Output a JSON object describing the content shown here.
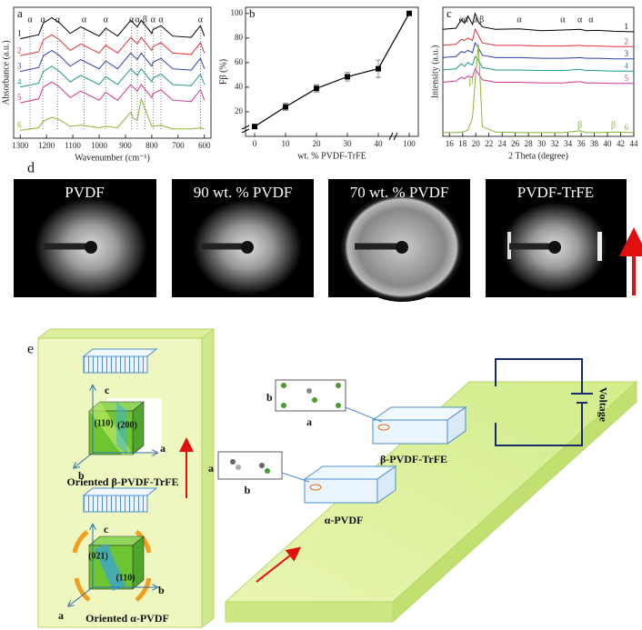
{
  "chart_data": [
    {
      "type": "line",
      "label": "a",
      "xlabel": "Wavenumber (cm⁻¹)",
      "ylabel": "Absorbance (a.u.)",
      "x": [
        1300,
        1230,
        1212,
        1180,
        1150,
        1110,
        1070,
        1000,
        975,
        930,
        880,
        870,
        855,
        840,
        800,
        795,
        765,
        720,
        650,
        615,
        600
      ],
      "xlim": [
        1325,
        575
      ],
      "ylim": [
        0,
        10
      ],
      "xticks": [
        1300,
        1200,
        1100,
        1000,
        900,
        800,
        700,
        600
      ],
      "guide_lines": true,
      "series": [
        {
          "name": "1",
          "color": "#000000",
          "values": [
            7.6,
            7.9,
            8.8,
            9.2,
            8.8,
            8.0,
            8.5,
            7.8,
            8.4,
            7.8,
            9.0,
            8.8,
            8.5,
            9.0,
            8.0,
            8.3,
            8.6,
            7.8,
            7.7,
            8.6,
            7.8
          ]
        },
        {
          "name": "2",
          "color": "#e0303a",
          "values": [
            6.3,
            6.6,
            7.5,
            7.9,
            7.5,
            6.7,
            7.2,
            6.5,
            7.1,
            6.5,
            7.7,
            7.5,
            7.2,
            7.7,
            6.7,
            7.0,
            7.3,
            6.5,
            6.4,
            7.3,
            6.5
          ]
        },
        {
          "name": "3",
          "color": "#2b3fae",
          "values": [
            5.1,
            5.4,
            6.3,
            6.7,
            6.3,
            5.5,
            6.0,
            5.3,
            5.9,
            5.3,
            6.5,
            6.3,
            6.0,
            6.5,
            5.5,
            5.8,
            6.1,
            5.3,
            5.2,
            6.1,
            5.3
          ]
        },
        {
          "name": "4",
          "color": "#1a9a8a",
          "values": [
            3.9,
            4.2,
            5.1,
            5.5,
            5.1,
            4.3,
            4.8,
            4.1,
            4.7,
            4.1,
            5.3,
            5.1,
            4.8,
            5.3,
            4.3,
            4.6,
            4.9,
            4.1,
            4.0,
            4.9,
            4.1
          ]
        },
        {
          "name": "5",
          "color": "#d0358f",
          "values": [
            2.7,
            3.0,
            3.9,
            4.3,
            3.9,
            3.1,
            3.6,
            2.9,
            3.5,
            2.9,
            4.1,
            3.9,
            3.6,
            4.1,
            3.1,
            3.4,
            3.7,
            2.9,
            2.8,
            3.7,
            2.9
          ]
        },
        {
          "name": "6",
          "color": "#8ab430",
          "values": [
            0.6,
            0.8,
            1.3,
            1.6,
            1.4,
            0.9,
            1.0,
            0.8,
            0.9,
            0.8,
            2.0,
            1.5,
            1.4,
            3.0,
            0.9,
            0.9,
            1.0,
            0.7,
            0.7,
            0.8,
            0.7
          ]
        }
      ],
      "annotations": [
        {
          "text": "α",
          "x": 1263
        },
        {
          "text": "α",
          "x": 1214
        },
        {
          "text": "α",
          "x": 1158
        },
        {
          "text": "α",
          "x": 1057
        },
        {
          "text": "α",
          "x": 975
        },
        {
          "text": "α",
          "x": 877
        },
        {
          "text": "α",
          "x": 855
        },
        {
          "text": "β",
          "x": 826
        },
        {
          "text": "α",
          "x": 795
        },
        {
          "text": "α",
          "x": 765
        },
        {
          "text": "α",
          "x": 615
        }
      ]
    },
    {
      "type": "line",
      "label": "b",
      "xlabel": "wt. % PVDF-TrFE",
      "ylabel": "Fβ (%)",
      "categories": [
        "0",
        "10",
        "20",
        "30",
        "40",
        "100"
      ],
      "values": [
        8,
        24,
        39,
        48.5,
        55,
        100
      ],
      "errors": [
        1.5,
        3,
        3,
        3.5,
        7,
        1.5
      ],
      "color": "#000000",
      "ylim": [
        0,
        105
      ],
      "yticks": [
        20,
        40,
        60,
        80,
        100
      ]
    },
    {
      "type": "line",
      "label": "c",
      "xlabel": "2 Theta (degree)",
      "ylabel": "Intensity (a.u.)",
      "x": [
        15,
        17,
        17.8,
        18.3,
        18.8,
        19.5,
        19.9,
        20.4,
        21,
        23,
        26.6,
        30,
        33.2,
        35.8,
        36.8,
        38.5,
        41,
        44
      ],
      "xlim": [
        15,
        44
      ],
      "ylim": [
        0,
        10.5
      ],
      "xticks": [
        16,
        18,
        20,
        22,
        24,
        26,
        28,
        30,
        32,
        34,
        36,
        38,
        40,
        42,
        44
      ],
      "series": [
        {
          "name": "1",
          "color": "#000000",
          "values": [
            8.7,
            8.8,
            9.5,
            9.2,
            9.8,
            9.1,
            10,
            9.3,
            8.9,
            8.7,
            8.75,
            8.6,
            8.65,
            8.7,
            8.6,
            8.62,
            8.55,
            8.5
          ]
        },
        {
          "name": "2",
          "color": "#e0303a",
          "values": [
            7.4,
            7.5,
            7.9,
            7.8,
            8.0,
            7.8,
            8.7,
            8.2,
            7.6,
            7.4,
            7.4,
            7.35,
            7.35,
            7.4,
            7.35,
            7.35,
            7.3,
            7.3
          ]
        },
        {
          "name": "3",
          "color": "#2b3fae",
          "values": [
            6.4,
            6.5,
            6.9,
            6.8,
            7.0,
            6.8,
            7.6,
            7.2,
            6.6,
            6.4,
            6.4,
            6.35,
            6.35,
            6.4,
            6.35,
            6.35,
            6.3,
            6.3
          ]
        },
        {
          "name": "4",
          "color": "#1a9a8a",
          "values": [
            5.4,
            5.5,
            5.9,
            5.7,
            6.0,
            5.8,
            6.5,
            6.2,
            5.6,
            5.4,
            5.4,
            5.35,
            5.35,
            5.45,
            5.35,
            5.35,
            5.3,
            5.3
          ]
        },
        {
          "name": "5",
          "color": "#d0358f",
          "values": [
            4.4,
            4.5,
            4.8,
            4.7,
            4.9,
            4.8,
            5.5,
            5.1,
            4.6,
            4.4,
            4.4,
            4.35,
            4.35,
            4.45,
            4.35,
            4.35,
            4.3,
            4.3
          ]
        },
        {
          "name": "6",
          "color": "#8ab430",
          "values": [
            0.3,
            0.3,
            0.35,
            0.4,
            0.5,
            1.5,
            4.5,
            7.5,
            0.8,
            0.35,
            0.3,
            0.3,
            0.3,
            0.45,
            0.3,
            0.3,
            0.35,
            0.3
          ]
        }
      ],
      "annotations": [
        {
          "text": "α",
          "x": 17.8
        },
        {
          "text": "α",
          "x": 18.5
        },
        {
          "text": "α",
          "x": 19.9
        },
        {
          "text": "β",
          "x": 20.9
        },
        {
          "text": "α",
          "x": 26.6
        },
        {
          "text": "α",
          "x": 33.2
        },
        {
          "text": "α",
          "x": 35.8
        },
        {
          "text": "α",
          "x": 37.5
        }
      ],
      "lower_annotations": [
        {
          "text": "β",
          "x": 19.3
        },
        {
          "text": "β",
          "x": 35.8
        },
        {
          "text": "β",
          "x": 40.9
        }
      ]
    }
  ],
  "panel_d": {
    "label": "d",
    "images": [
      "PVDF",
      "90 wt. % PVDF",
      "70 wt. % PVDF",
      "PVDF-TrFE"
    ]
  },
  "panel_e": {
    "label": "e",
    "beta_cell": {
      "c": "c",
      "a": "a",
      "b": "b",
      "planes": [
        "(110)",
        "(200)"
      ],
      "caption": "Oriented β-PVDF-TrFE"
    },
    "alpha_cell": {
      "c": "c",
      "b": "b",
      "a": "a",
      "planes": [
        "(021)",
        "(110)"
      ],
      "caption": "Oriented α-PVDF"
    },
    "beta_chain": {
      "b": "b",
      "a": "a"
    },
    "alpha_chain": {
      "a": "a",
      "b": "b"
    },
    "film_labels": [
      "β-PVDF-TrFE",
      "α-PVDF"
    ],
    "voltage": "Voltage"
  }
}
